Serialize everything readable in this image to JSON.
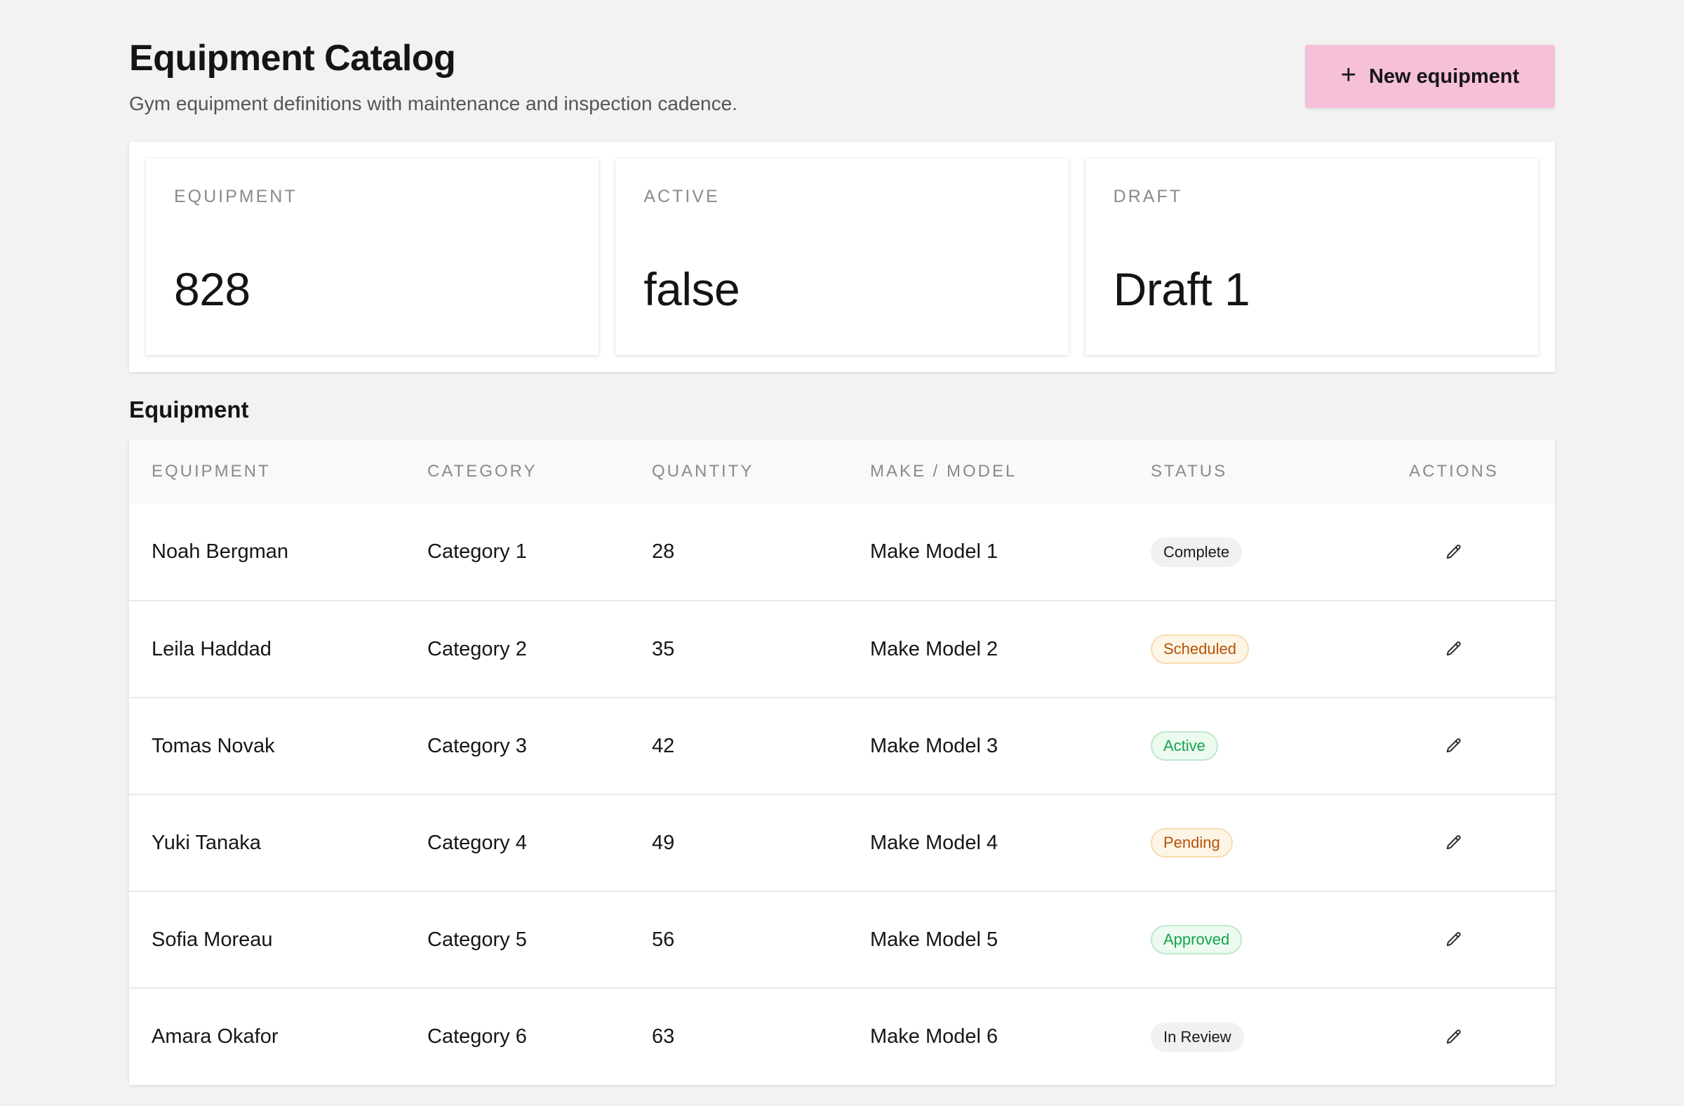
{
  "header": {
    "title": "Equipment Catalog",
    "subtitle": "Gym equipment definitions with maintenance and inspection cadence.",
    "new_button_label": "New equipment",
    "new_button_icon": "plus-icon"
  },
  "stats": [
    {
      "label": "EQUIPMENT",
      "value": "828"
    },
    {
      "label": "ACTIVE",
      "value": "false"
    },
    {
      "label": "DRAFT",
      "value": "Draft 1"
    }
  ],
  "section": {
    "title": "Equipment"
  },
  "table": {
    "columns": [
      "EQUIPMENT",
      "CATEGORY",
      "QUANTITY",
      "MAKE / MODEL",
      "STATUS",
      "ACTIONS"
    ],
    "rows": [
      {
        "equipment": "Noah Bergman",
        "category": "Category 1",
        "quantity": "28",
        "make_model": "Make Model 1",
        "status": "Complete",
        "status_tone": "neutral"
      },
      {
        "equipment": "Leila Haddad",
        "category": "Category 2",
        "quantity": "35",
        "make_model": "Make Model 2",
        "status": "Scheduled",
        "status_tone": "warn"
      },
      {
        "equipment": "Tomas Novak",
        "category": "Category 3",
        "quantity": "42",
        "make_model": "Make Model 3",
        "status": "Active",
        "status_tone": "success"
      },
      {
        "equipment": "Yuki Tanaka",
        "category": "Category 4",
        "quantity": "49",
        "make_model": "Make Model 4",
        "status": "Pending",
        "status_tone": "warn"
      },
      {
        "equipment": "Sofia Moreau",
        "category": "Category 5",
        "quantity": "56",
        "make_model": "Make Model 5",
        "status": "Approved",
        "status_tone": "success"
      },
      {
        "equipment": "Amara Okafor",
        "category": "Category 6",
        "quantity": "63",
        "make_model": "Make Model 6",
        "status": "In Review",
        "status_tone": "neutral"
      }
    ],
    "row_action_icon": "pencil-icon"
  },
  "colors": {
    "page_background": "#f2f2f2",
    "primary_button": "#f6c0d8",
    "badge_warn_text": "#b45309",
    "badge_success_text": "#16a34a"
  }
}
